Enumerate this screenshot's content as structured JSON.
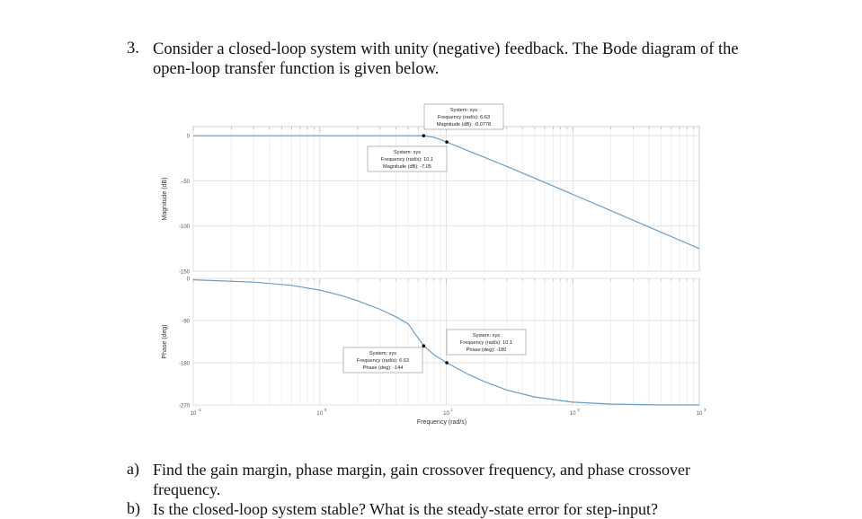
{
  "problem": {
    "number": "3.",
    "intro_line1": "Consider a closed-loop system with unity (negative) feedback. The Bode diagram of the",
    "intro_line2": "open-loop transfer function is given below."
  },
  "questions": [
    {
      "label": "a)",
      "line1": "Find the gain margin, phase margin, gain crossover frequency, and phase crossover",
      "line2": "frequency."
    },
    {
      "label": "b)",
      "line1": "Is the closed-loop system stable? What is the steady-state error for step-input?",
      "line2": ""
    }
  ],
  "chart_data": {
    "type": "line",
    "subtype": "bode",
    "title": "",
    "xlabel": "Frequency  (rad/s)",
    "x_scale": "log",
    "xlim": [
      0.1,
      1000
    ],
    "x_ticks": [
      {
        "value": 0.1,
        "base": "10",
        "exp": "-1"
      },
      {
        "value": 1,
        "base": "10",
        "exp": "0"
      },
      {
        "value": 10,
        "base": "10",
        "exp": "1"
      },
      {
        "value": 100,
        "base": "10",
        "exp": "2"
      },
      {
        "value": 1000,
        "base": "10",
        "exp": "3"
      }
    ],
    "grid": true,
    "line_color": "#6a9ec6",
    "magnitude": {
      "ylabel": "Magnitude (dB)",
      "ylim": [
        -150,
        10
      ],
      "y_ticks": [
        0,
        -50,
        -100,
        -150
      ],
      "series": {
        "x": [
          0.1,
          1,
          3,
          5,
          6.63,
          8,
          10.1,
          15,
          20,
          30,
          50,
          100,
          200,
          500,
          1000
        ],
        "y": [
          0,
          0,
          -0.01,
          -0.03,
          -0.0778,
          -1.8,
          -7.05,
          -17,
          -24,
          -34,
          -47,
          -65,
          -83,
          -107,
          -125
        ]
      }
    },
    "phase": {
      "ylabel": "Phase (deg)",
      "ylim": [
        -270,
        0
      ],
      "y_ticks": [
        0,
        -90,
        -180,
        -270
      ],
      "series": {
        "x": [
          0.1,
          0.3,
          0.6,
          1,
          1.5,
          2,
          3,
          4,
          5,
          6.63,
          8,
          10.1,
          15,
          20,
          30,
          50,
          100,
          200,
          500,
          1000
        ],
        "y": [
          -3,
          -8,
          -15,
          -25,
          -37,
          -48,
          -66,
          -82,
          -97,
          -144,
          -163,
          -180,
          -205,
          -220,
          -238,
          -253,
          -264,
          -268,
          -270,
          -270
        ]
      }
    },
    "annotations": [
      {
        "panel": "magnitude",
        "x": 6.63,
        "y": -0.0778,
        "lines": [
          "System: sys",
          "Frequency (rad/s): 6.63",
          "Magnitude (dB): -0.0778"
        ],
        "anchor": "above-right"
      },
      {
        "panel": "magnitude",
        "x": 10.1,
        "y": -7.05,
        "lines": [
          "System: sys",
          "Frequency (rad/s): 10.1",
          "Magnitude (dB): -7.05"
        ],
        "anchor": "above-left"
      },
      {
        "panel": "phase",
        "x": 6.63,
        "y": -144,
        "lines": [
          "System: sys",
          "Frequency (rad/s): 6.63",
          "Phase (deg): -144"
        ],
        "anchor": "below-left"
      },
      {
        "panel": "phase",
        "x": 10.1,
        "y": -180,
        "lines": [
          "System: sys",
          "Frequency (rad/s): 10.1",
          "Phase (deg): -180"
        ],
        "anchor": "above-right"
      }
    ]
  }
}
